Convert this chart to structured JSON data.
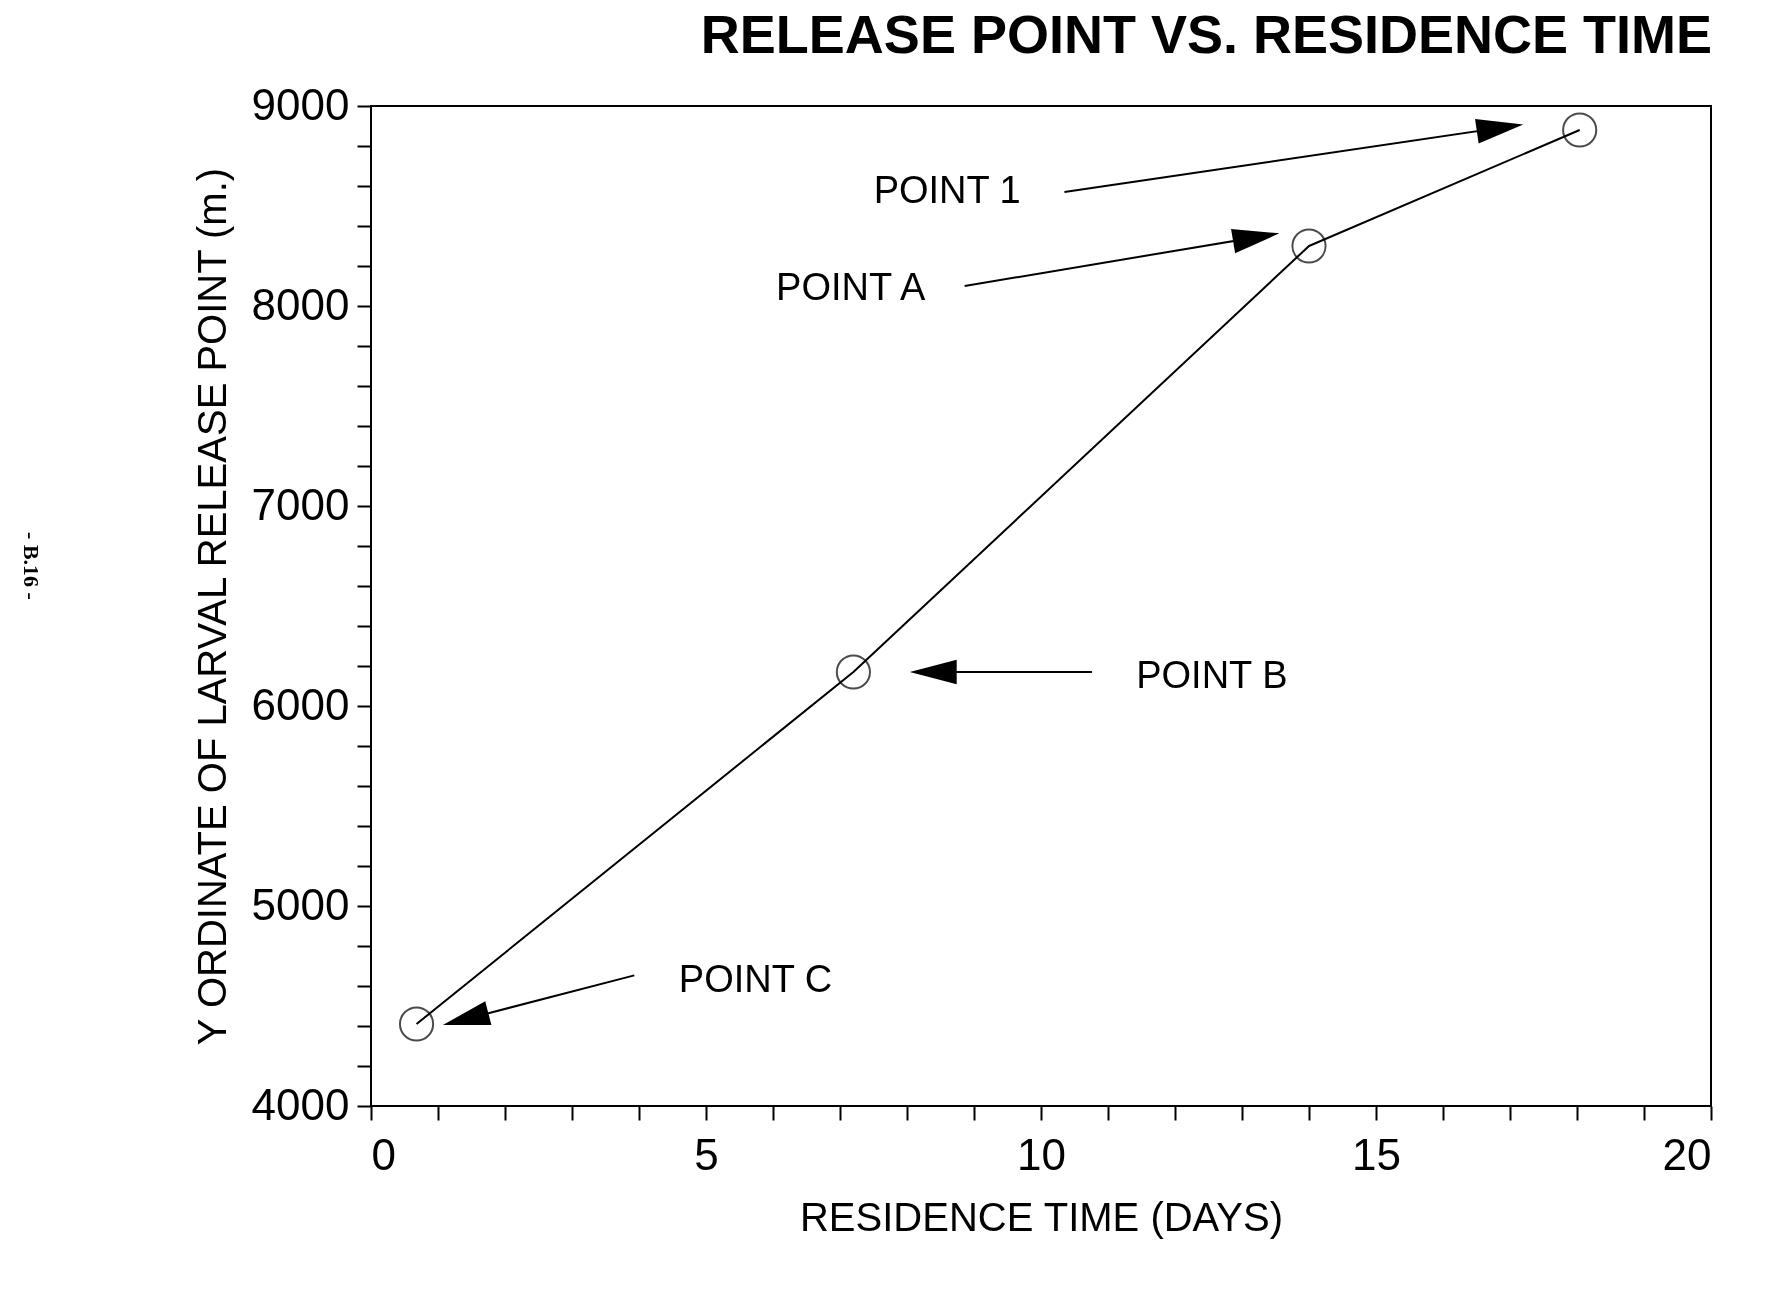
{
  "chart_data": {
    "type": "line",
    "title": "RELEASE POINT VS. RESIDENCE TIME",
    "xlabel": "RESIDENCE TIME (DAYS)",
    "ylabel": "Y ORDINATE OF LARVAL RELEASE POINT (m.)",
    "x": [
      0.68,
      7.2,
      14.0,
      18.04
    ],
    "series": [
      {
        "color": "#000000",
        "values": [
          4410,
          6170,
          8300,
          8880
        ]
      }
    ],
    "marker": "circle",
    "line_style": "solid",
    "grid": false,
    "legend": false,
    "xlim": [
      0,
      20
    ],
    "ylim": [
      4000,
      9000
    ],
    "xticks": [
      0,
      {
        "value": 1,
        "label": null
      },
      {
        "value": 2,
        "label": null
      },
      {
        "value": 3,
        "label": null
      },
      {
        "value": 4,
        "label": null
      },
      5,
      {
        "value": 6,
        "label": null
      },
      {
        "value": 7,
        "label": null
      },
      {
        "value": 8,
        "label": null
      },
      {
        "value": 9,
        "label": null
      },
      10,
      {
        "value": 11,
        "label": null
      },
      {
        "value": 12,
        "label": null
      },
      {
        "value": 13,
        "label": null
      },
      {
        "value": 14,
        "label": null
      },
      15,
      {
        "value": 16,
        "label": null
      },
      {
        "value": 17,
        "label": null
      },
      {
        "value": 18,
        "label": null
      },
      {
        "value": 19,
        "label": null
      },
      20
    ],
    "yticks": [
      4000,
      {
        "value": 4200,
        "label": null
      },
      {
        "value": 4400,
        "label": null
      },
      {
        "value": 4600,
        "label": null
      },
      {
        "value": 4800,
        "label": null
      },
      5000,
      {
        "value": 5200,
        "label": null
      },
      {
        "value": 5400,
        "label": null
      },
      {
        "value": 5600,
        "label": null
      },
      {
        "value": 5800,
        "label": null
      },
      6000,
      {
        "value": 6200,
        "label": null
      },
      {
        "value": 6400,
        "label": null
      },
      {
        "value": 6600,
        "label": null
      },
      {
        "value": 6800,
        "label": null
      },
      7000,
      {
        "value": 7200,
        "label": null
      },
      {
        "value": 7400,
        "label": null
      },
      {
        "value": 7600,
        "label": null
      },
      {
        "value": 7800,
        "label": null
      },
      8000,
      {
        "value": 8200,
        "label": null
      },
      {
        "value": 8400,
        "label": null
      },
      {
        "value": 8600,
        "label": null
      },
      {
        "value": 8800,
        "label": null
      },
      9000
    ],
    "annotations": [
      "POINT 1",
      "POINT A",
      "POINT B",
      "POINT C",
      "- B.16 -"
    ]
  }
}
